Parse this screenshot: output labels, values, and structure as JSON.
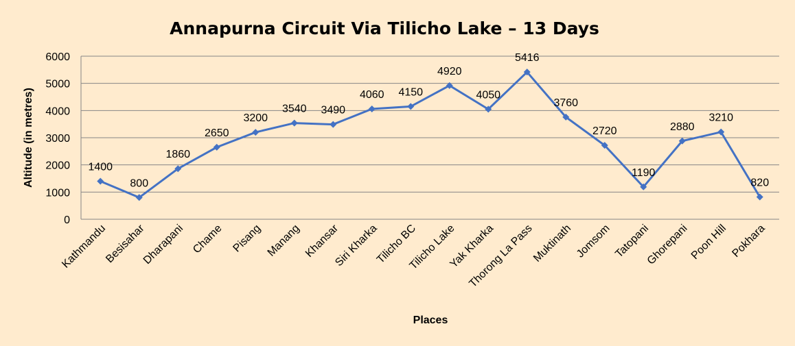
{
  "chart_data": {
    "type": "line",
    "title": "Annapurna Circuit Via Tilicho Lake – 13 Days",
    "xlabel": "Places",
    "ylabel": "Altitude (in metres)",
    "ylim": [
      0,
      6000
    ],
    "yticks": [
      0,
      1000,
      2000,
      3000,
      4000,
      5000,
      6000
    ],
    "grid": true,
    "legend": "none",
    "categories": [
      "Kathmandu",
      "Besisahar",
      "Dharapani",
      "Chame",
      "Pisang",
      "Manang",
      "Khansar",
      "Siri Kharka",
      "Tilicho BC",
      "Tilicho Lake",
      "Yak Kharka",
      "Thorong La Pass",
      "Muktinath",
      "Jomsom",
      "Tatopani",
      "Ghorepani",
      "Poon Hill",
      "Pokhara"
    ],
    "series": [
      {
        "name": "Altitude",
        "color": "#4472C4",
        "marker": "diamond",
        "values": [
          1400,
          800,
          1860,
          2650,
          3200,
          3540,
          3490,
          4060,
          4150,
          4920,
          4050,
          5416,
          3760,
          2720,
          1190,
          2880,
          3210,
          820
        ]
      }
    ]
  },
  "colors": {
    "background": "#FFEBCE",
    "line": "#4472C4",
    "grid": "#868686"
  }
}
